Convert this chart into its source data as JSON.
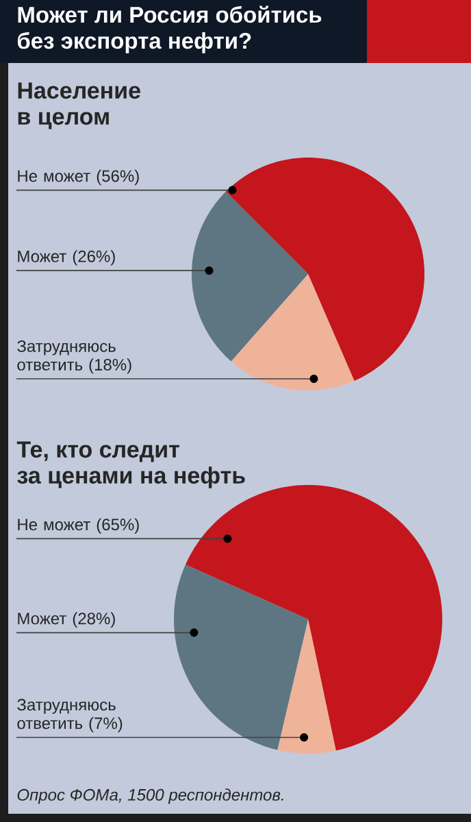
{
  "chart_data": [
    {
      "type": "pie",
      "title": "Может ли Россия обойтись без экспорта нефти?",
      "subtitle": "Население в целом",
      "categories": [
        "Не может (56%)",
        "Затрудняюсь ответить (18%)",
        "Может (26%)"
      ],
      "values": [
        56,
        18,
        26
      ],
      "colors": [
        "#c4161c",
        "#efb39a",
        "#5e7681"
      ]
    },
    {
      "type": "pie",
      "subtitle": "Те, кто следит за ценами на нефть",
      "categories": [
        "Не может (65%)",
        "Затрудняюсь ответить (7%)",
        "Может (28%)"
      ],
      "values": [
        65,
        7,
        28
      ],
      "colors": [
        "#c4161c",
        "#efb39a",
        "#5e7681"
      ],
      "annotations": [
        "Опрос ФОМа, 1500 респондентов."
      ]
    }
  ]
}
